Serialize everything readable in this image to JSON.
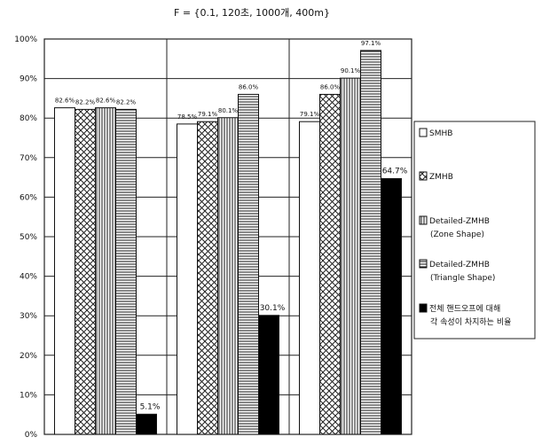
{
  "chart_data": {
    "type": "bar",
    "title": "F = {0.1, 120초, 1000개, 400m}",
    "xlabel": "",
    "ylabel": "",
    "categories": [
      "",
      "",
      ""
    ],
    "ylim": [
      0,
      100
    ],
    "yticks": [
      "0%",
      "10%",
      "20%",
      "30%",
      "40%",
      "50%",
      "60%",
      "70%",
      "80%",
      "90%",
      "100%"
    ],
    "grid": true,
    "legend_position": "right",
    "series": [
      {
        "name": "SMHB",
        "pattern": "white",
        "values": [
          82.6,
          78.5,
          79.1
        ],
        "labels": [
          "82.6%",
          "78.5%",
          "79.1%"
        ]
      },
      {
        "name": "ZMHB",
        "pattern": "crosshatch",
        "values": [
          82.2,
          79.1,
          86.0
        ],
        "labels": [
          "82.2%",
          "79.1%",
          "86.0%"
        ]
      },
      {
        "name": "Detailed-ZMHB (Zone Shape)",
        "name_lines": [
          "Detailed-ZMHB",
          "(Zone Shape)"
        ],
        "pattern": "vertical",
        "values": [
          82.6,
          80.1,
          90.1
        ],
        "labels": [
          "82.6%",
          "80.1%",
          "90.1%"
        ]
      },
      {
        "name": "Detailed-ZMHB (Triangle Shape)",
        "name_lines": [
          "Detailed-ZMHB",
          "(Triangle Shape)"
        ],
        "pattern": "horizontal",
        "values": [
          82.2,
          86.0,
          97.1
        ],
        "labels": [
          "82.2%",
          "86.0%",
          "97.1%"
        ]
      },
      {
        "name": "전체 핸드오프에 대해 각 속성이 차지하는 비율",
        "name_lines": [
          "전체 핸드오프에 대해",
          "각 속성이 차지하는 비율"
        ],
        "pattern": "black",
        "values": [
          5.1,
          30.1,
          64.7
        ],
        "labels": [
          "5.1%",
          "30.1%",
          "64.7%"
        ]
      }
    ]
  }
}
